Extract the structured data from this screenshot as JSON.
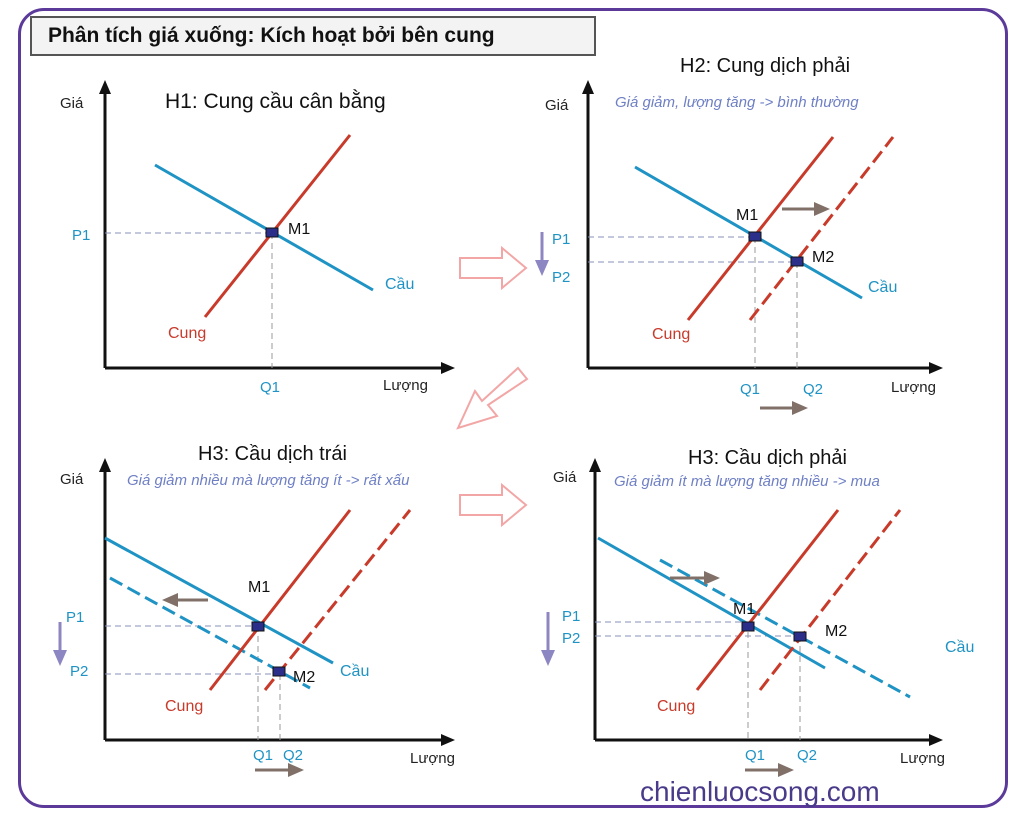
{
  "header": {
    "title": "Phân tích giá xuống: Kích hoạt bởi bên cung"
  },
  "axis": {
    "price": "Giá",
    "quantity": "Lượng"
  },
  "curves": {
    "supply": "Cung",
    "demand": "Cầu"
  },
  "points": {
    "m1": "M1",
    "m2": "M2",
    "p1": "P1",
    "p2": "P2",
    "q1": "Q1",
    "q2": "Q2"
  },
  "panels": {
    "h1": {
      "title": "H1: Cung cầu cân bằng"
    },
    "h2": {
      "title": "H2: Cung dịch phải",
      "note": "Giá giảm, lượng tăng -> bình thường"
    },
    "h3_left": {
      "title": "H3: Cầu dịch trái",
      "note": "Giá giảm nhiều mà lượng tăng ít -> rất xấu"
    },
    "h3_right": {
      "title": "H3: Cầu dịch phải",
      "note": "Giá giảm ít mà lượng tăng nhiều -> mua"
    }
  },
  "footer": {
    "site": "chienluocsong.com"
  },
  "colors": {
    "supply": "#c83a2a",
    "demand": "#1f93c4",
    "label": "#1f93c4",
    "note": "#6e7fc4",
    "frame": "#5b3a9a",
    "arrow": "#807068",
    "price_arrow": "#8c86c2"
  }
}
